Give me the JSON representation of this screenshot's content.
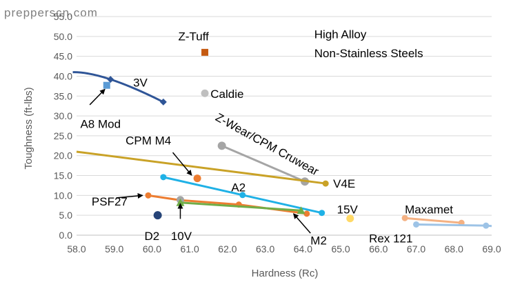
{
  "watermark": "prepperscn.com",
  "chart_data": {
    "type": "scatter",
    "title": "",
    "xlabel": "Hardness (Rc)",
    "ylabel": "Toughness (ft-lbs)",
    "xlim": [
      58.0,
      69.0
    ],
    "ylim": [
      0.0,
      55.0
    ],
    "x_ticks": [
      "58.0",
      "59.0",
      "60.0",
      "61.0",
      "62.0",
      "63.0",
      "64.0",
      "65.0",
      "66.0",
      "67.0",
      "68.0",
      "69.0"
    ],
    "y_ticks": [
      "0.0",
      "5.0",
      "10.0",
      "15.0",
      "20.0",
      "25.0",
      "30.0",
      "35.0",
      "40.0",
      "45.0",
      "50.0",
      "55.0"
    ],
    "grid": "horizontal",
    "legend": "none",
    "series": [
      {
        "name": "3V",
        "color": "#2f5597",
        "marker": "diamond",
        "curve": true,
        "x": [
          57.9,
          58.9,
          60.3
        ],
        "y": [
          41.0,
          39.2,
          33.5
        ],
        "marked": [
          false,
          true,
          true
        ]
      },
      {
        "name": "A8 Mod",
        "color": "#5b9bd5",
        "marker": "square",
        "x": [
          58.8
        ],
        "y": [
          37.7
        ]
      },
      {
        "name": "Z-Tuff",
        "color": "#c55a11",
        "marker": "square",
        "x": [
          61.4
        ],
        "y": [
          46.0
        ]
      },
      {
        "name": "Caldie",
        "color": "#bfbfbf",
        "marker": "circle",
        "x": [
          61.4
        ],
        "y": [
          35.7
        ]
      },
      {
        "name": "Z-Wear/CPM Cruwear",
        "color": "#a5a5a5",
        "marker": "circle",
        "x": [
          61.85,
          64.05
        ],
        "y": [
          22.5,
          13.5
        ]
      },
      {
        "name": "V4E",
        "color": "#c9a227",
        "marker": "circle",
        "x": [
          58.0,
          64.6
        ],
        "y": [
          21.0,
          13.0
        ],
        "marked": [
          false,
          true
        ]
      },
      {
        "name": "CPM M4",
        "color": "#ed7d31",
        "marker": "circle",
        "x": [
          61.2
        ],
        "y": [
          14.3
        ]
      },
      {
        "name": "A2",
        "color": "#1fb1e6",
        "marker": "circle",
        "x": [
          60.3,
          62.4,
          64.5
        ],
        "y": [
          14.6,
          10.1,
          5.6
        ]
      },
      {
        "name": "M2",
        "color": "#ed7d31",
        "marker": "circle",
        "x": [
          59.9,
          60.75,
          62.3,
          64.1
        ],
        "y": [
          10.0,
          8.8,
          7.7,
          5.4
        ]
      },
      {
        "name": "PSF27",
        "color": "#a5a5a5",
        "marker": "circle",
        "x": [
          60.75
        ],
        "y": [
          8.9
        ]
      },
      {
        "name": "10V",
        "color": "#70ad47",
        "marker": "triangle",
        "x": [
          60.75,
          63.95
        ],
        "y": [
          8.2,
          6.2
        ]
      },
      {
        "name": "D2",
        "color": "#264478",
        "marker": "circle",
        "x": [
          60.15
        ],
        "y": [
          5.0
        ]
      },
      {
        "name": "15V",
        "color": "#ffd966",
        "marker": "circle",
        "x": [
          65.25
        ],
        "y": [
          4.2
        ]
      },
      {
        "name": "Maxamet",
        "color": "#f4b183",
        "marker": "circle",
        "x": [
          66.7,
          68.2
        ],
        "y": [
          4.3,
          3.1
        ]
      },
      {
        "name": "Rex 121",
        "color": "#9dc3e6",
        "marker": "circle",
        "x": [
          67.0,
          68.85,
          69.0
        ],
        "y": [
          2.7,
          2.4,
          2.3
        ],
        "marked": [
          true,
          true,
          false
        ]
      }
    ],
    "annotations": [
      {
        "text": "High Alloy",
        "x": 64.3,
        "y": 49.5,
        "anchor": "start"
      },
      {
        "text": "Non-Stainless Steels",
        "x": 64.3,
        "y": 44.8,
        "anchor": "start"
      },
      {
        "text": "3V",
        "x": 59.5,
        "y": 37.4,
        "anchor": "start"
      },
      {
        "text": "A8 Mod",
        "x": 58.1,
        "y": 27.0,
        "anchor": "start"
      },
      {
        "text": "Z-Tuff",
        "x": 61.1,
        "y": 49.0,
        "anchor": "middle"
      },
      {
        "text": "Caldie",
        "x": 61.55,
        "y": 34.5,
        "anchor": "start"
      },
      {
        "text": "CPM M4",
        "x": 59.3,
        "y": 22.8,
        "anchor": "start"
      },
      {
        "text": "V4E",
        "x": 64.8,
        "y": 12.0,
        "anchor": "start"
      },
      {
        "text": "A2",
        "x": 62.1,
        "y": 11.0,
        "anchor": "start"
      },
      {
        "text": "PSF27",
        "x": 58.4,
        "y": 7.5,
        "anchor": "start"
      },
      {
        "text": "15V",
        "x": 64.9,
        "y": 5.5,
        "anchor": "start"
      },
      {
        "text": "Maxamet",
        "x": 66.7,
        "y": 5.5,
        "anchor": "start"
      },
      {
        "text": "D2",
        "x": 59.8,
        "y": -1.2,
        "anchor": "start"
      },
      {
        "text": "10V",
        "x": 60.5,
        "y": -1.2,
        "anchor": "start"
      },
      {
        "text": "M2",
        "x": 64.2,
        "y": -2.3,
        "anchor": "start"
      },
      {
        "text": "Rex 121",
        "x": 65.75,
        "y": -1.8,
        "anchor": "start"
      }
    ],
    "rotated_label": {
      "text": "Z-Wear/CPM Cruwear",
      "x": 63.0,
      "y": 22.0
    },
    "arrows": [
      {
        "from": [
          58.35,
          32.8
        ],
        "to": [
          58.75,
          36.7
        ]
      },
      {
        "from": [
          60.55,
          20.8
        ],
        "to": [
          61.05,
          15.1
        ]
      },
      {
        "from": [
          59.05,
          9.4
        ],
        "to": [
          59.75,
          10.0
        ]
      },
      {
        "from": [
          60.75,
          4.1
        ],
        "to": [
          60.75,
          7.9
        ]
      },
      {
        "from": [
          64.2,
          0.5
        ],
        "to": [
          63.75,
          5.4
        ]
      }
    ]
  }
}
